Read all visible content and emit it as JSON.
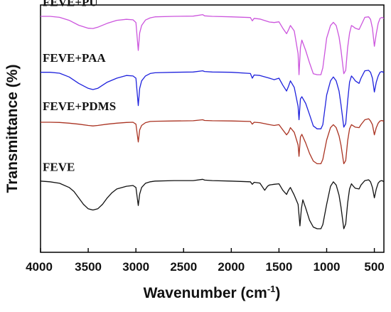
{
  "chart_data": {
    "type": "line",
    "xlabel_main": "Wavenumber (cm",
    "xlabel_sup": "-1",
    "xlabel_end": ")",
    "ylabel": "Transmittance (%)",
    "xlim": [
      4000,
      400
    ],
    "x_reversed": true,
    "ylim": [
      0,
      100
    ],
    "y_ticks_shown": false,
    "grid": false,
    "legend": "inline-labels",
    "xticks": [
      "4000",
      "3500",
      "3000",
      "2500",
      "2000",
      "1500",
      "1000",
      "500"
    ],
    "xtick_values": [
      4000,
      3500,
      3000,
      2500,
      2000,
      1500,
      1000,
      500
    ],
    "series": [
      {
        "name": "FEVE+PU",
        "color": "#cc55dd",
        "points": [
          [
            4000,
            95.4
          ],
          [
            3900,
            95.4
          ],
          [
            3800,
            95.0
          ],
          [
            3700,
            93.8
          ],
          [
            3600,
            91.8
          ],
          [
            3500,
            90.6
          ],
          [
            3450,
            90.5
          ],
          [
            3400,
            91.0
          ],
          [
            3300,
            92.6
          ],
          [
            3200,
            93.8
          ],
          [
            3100,
            94.2
          ],
          [
            3030,
            94.0
          ],
          [
            3000,
            92.9
          ],
          [
            2975,
            81.6
          ],
          [
            2960,
            88.7
          ],
          [
            2940,
            91.7
          ],
          [
            2900,
            93.9
          ],
          [
            2850,
            94.8
          ],
          [
            2800,
            95.2
          ],
          [
            2600,
            95.4
          ],
          [
            2400,
            95.5
          ],
          [
            2300,
            96.1
          ],
          [
            2280,
            95.6
          ],
          [
            2200,
            95.4
          ],
          [
            2000,
            95.2
          ],
          [
            1800,
            94.9
          ],
          [
            1780,
            93.6
          ],
          [
            1760,
            94.6
          ],
          [
            1700,
            94.3
          ],
          [
            1600,
            93.1
          ],
          [
            1550,
            92.9
          ],
          [
            1500,
            93.2
          ],
          [
            1460,
            90.6
          ],
          [
            1420,
            88.4
          ],
          [
            1400,
            89.9
          ],
          [
            1380,
            91.7
          ],
          [
            1340,
            89.5
          ],
          [
            1300,
            80.3
          ],
          [
            1290,
            71.8
          ],
          [
            1275,
            82.8
          ],
          [
            1260,
            85.8
          ],
          [
            1220,
            81.6
          ],
          [
            1180,
            76.6
          ],
          [
            1140,
            72.2
          ],
          [
            1100,
            71.8
          ],
          [
            1060,
            71.8
          ],
          [
            1040,
            74.6
          ],
          [
            1000,
            86.6
          ],
          [
            960,
            91.7
          ],
          [
            930,
            93.0
          ],
          [
            900,
            91.7
          ],
          [
            870,
            87.1
          ],
          [
            850,
            81.9
          ],
          [
            820,
            72.2
          ],
          [
            800,
            73.6
          ],
          [
            780,
            82.8
          ],
          [
            760,
            88.6
          ],
          [
            740,
            91.7
          ],
          [
            720,
            91.2
          ],
          [
            700,
            90.6
          ],
          [
            660,
            90.1
          ],
          [
            640,
            91.7
          ],
          [
            600,
            95.0
          ],
          [
            560,
            95.2
          ],
          [
            540,
            94.2
          ],
          [
            520,
            90.6
          ],
          [
            500,
            83.3
          ],
          [
            480,
            88.4
          ],
          [
            460,
            92.6
          ],
          [
            440,
            94.6
          ],
          [
            420,
            95.0
          ],
          [
            400,
            94.6
          ]
        ]
      },
      {
        "name": "FEVE+PAA",
        "color": "#1f22dd",
        "points": [
          [
            4000,
            72.8
          ],
          [
            3900,
            72.8
          ],
          [
            3800,
            72.4
          ],
          [
            3700,
            70.9
          ],
          [
            3600,
            68.3
          ],
          [
            3500,
            66.3
          ],
          [
            3450,
            65.8
          ],
          [
            3400,
            66.3
          ],
          [
            3300,
            68.8
          ],
          [
            3200,
            70.4
          ],
          [
            3100,
            71.5
          ],
          [
            3030,
            71.3
          ],
          [
            3000,
            70.4
          ],
          [
            2975,
            59.3
          ],
          [
            2960,
            66.3
          ],
          [
            2940,
            69.3
          ],
          [
            2900,
            71.3
          ],
          [
            2850,
            72.3
          ],
          [
            2800,
            72.6
          ],
          [
            2600,
            72.8
          ],
          [
            2400,
            72.9
          ],
          [
            2300,
            73.4
          ],
          [
            2280,
            73.1
          ],
          [
            2200,
            72.9
          ],
          [
            2000,
            72.8
          ],
          [
            1800,
            72.3
          ],
          [
            1780,
            70.4
          ],
          [
            1760,
            71.7
          ],
          [
            1700,
            71.5
          ],
          [
            1600,
            70.4
          ],
          [
            1550,
            69.8
          ],
          [
            1500,
            70.4
          ],
          [
            1460,
            67.6
          ],
          [
            1420,
            65.2
          ],
          [
            1400,
            67.1
          ],
          [
            1380,
            69.3
          ],
          [
            1340,
            66.7
          ],
          [
            1300,
            59.0
          ],
          [
            1290,
            53.6
          ],
          [
            1275,
            62.0
          ],
          [
            1260,
            62.9
          ],
          [
            1220,
            60.2
          ],
          [
            1180,
            55.7
          ],
          [
            1140,
            51.1
          ],
          [
            1100,
            49.9
          ],
          [
            1060,
            49.9
          ],
          [
            1040,
            51.6
          ],
          [
            1000,
            63.6
          ],
          [
            960,
            69.3
          ],
          [
            930,
            70.9
          ],
          [
            900,
            69.3
          ],
          [
            870,
            65.2
          ],
          [
            850,
            59.8
          ],
          [
            820,
            50.6
          ],
          [
            800,
            52.0
          ],
          [
            780,
            61.1
          ],
          [
            760,
            68.8
          ],
          [
            740,
            71.3
          ],
          [
            720,
            70.4
          ],
          [
            700,
            69.3
          ],
          [
            660,
            68.3
          ],
          [
            640,
            70.4
          ],
          [
            600,
            73.4
          ],
          [
            560,
            73.6
          ],
          [
            540,
            72.8
          ],
          [
            520,
            70.4
          ],
          [
            500,
            64.8
          ],
          [
            480,
            68.8
          ],
          [
            460,
            71.3
          ],
          [
            440,
            72.8
          ],
          [
            420,
            73.1
          ],
          [
            400,
            72.6
          ]
        ]
      },
      {
        "name": "FEVE+PDMS",
        "color": "#aa3322",
        "points": [
          [
            4000,
            52.6
          ],
          [
            3900,
            52.6
          ],
          [
            3800,
            52.5
          ],
          [
            3700,
            52.2
          ],
          [
            3600,
            51.8
          ],
          [
            3500,
            51.3
          ],
          [
            3450,
            51.1
          ],
          [
            3400,
            51.3
          ],
          [
            3300,
            51.8
          ],
          [
            3200,
            52.2
          ],
          [
            3100,
            52.5
          ],
          [
            3030,
            52.6
          ],
          [
            3000,
            51.8
          ],
          [
            2975,
            44.6
          ],
          [
            2960,
            49.5
          ],
          [
            2940,
            51.3
          ],
          [
            2900,
            52.4
          ],
          [
            2850,
            52.9
          ],
          [
            2800,
            53.0
          ],
          [
            2600,
            53.1
          ],
          [
            2400,
            53.2
          ],
          [
            2300,
            53.6
          ],
          [
            2280,
            53.3
          ],
          [
            2200,
            53.2
          ],
          [
            2000,
            53.1
          ],
          [
            1800,
            52.9
          ],
          [
            1780,
            51.8
          ],
          [
            1760,
            52.6
          ],
          [
            1700,
            52.4
          ],
          [
            1600,
            51.6
          ],
          [
            1550,
            51.3
          ],
          [
            1500,
            51.6
          ],
          [
            1460,
            49.5
          ],
          [
            1420,
            47.5
          ],
          [
            1400,
            48.5
          ],
          [
            1380,
            50.4
          ],
          [
            1340,
            48.5
          ],
          [
            1300,
            43.4
          ],
          [
            1290,
            38.8
          ],
          [
            1275,
            46.6
          ],
          [
            1260,
            47.7
          ],
          [
            1220,
            44.2
          ],
          [
            1180,
            40.0
          ],
          [
            1140,
            36.9
          ],
          [
            1100,
            35.8
          ],
          [
            1060,
            35.8
          ],
          [
            1040,
            37.6
          ],
          [
            1000,
            45.4
          ],
          [
            960,
            50.4
          ],
          [
            930,
            51.6
          ],
          [
            900,
            50.4
          ],
          [
            870,
            47.1
          ],
          [
            850,
            43.4
          ],
          [
            820,
            35.8
          ],
          [
            800,
            37.1
          ],
          [
            780,
            45.0
          ],
          [
            760,
            49.9
          ],
          [
            740,
            51.6
          ],
          [
            720,
            51.1
          ],
          [
            700,
            50.6
          ],
          [
            660,
            50.4
          ],
          [
            640,
            51.6
          ],
          [
            600,
            53.6
          ],
          [
            560,
            54.0
          ],
          [
            540,
            53.1
          ],
          [
            520,
            51.6
          ],
          [
            500,
            47.5
          ],
          [
            480,
            50.4
          ],
          [
            460,
            52.2
          ],
          [
            440,
            53.1
          ],
          [
            420,
            53.3
          ],
          [
            400,
            52.9
          ]
        ]
      },
      {
        "name": "FEVE",
        "color": "#111111",
        "points": [
          [
            4000,
            28.8
          ],
          [
            3900,
            28.5
          ],
          [
            3800,
            27.9
          ],
          [
            3700,
            26.2
          ],
          [
            3650,
            24.6
          ],
          [
            3600,
            22.0
          ],
          [
            3550,
            19.4
          ],
          [
            3500,
            17.6
          ],
          [
            3450,
            17.1
          ],
          [
            3400,
            17.6
          ],
          [
            3350,
            19.4
          ],
          [
            3300,
            22.0
          ],
          [
            3250,
            24.1
          ],
          [
            3200,
            25.6
          ],
          [
            3100,
            26.7
          ],
          [
            3030,
            27.0
          ],
          [
            3000,
            26.2
          ],
          [
            2975,
            18.9
          ],
          [
            2960,
            23.6
          ],
          [
            2940,
            26.2
          ],
          [
            2900,
            27.9
          ],
          [
            2850,
            28.5
          ],
          [
            2800,
            28.8
          ],
          [
            2600,
            29.0
          ],
          [
            2400,
            29.0
          ],
          [
            2300,
            29.5
          ],
          [
            2280,
            29.2
          ],
          [
            2200,
            29.0
          ],
          [
            2000,
            28.8
          ],
          [
            1800,
            28.5
          ],
          [
            1780,
            27.5
          ],
          [
            1760,
            28.3
          ],
          [
            1700,
            28.0
          ],
          [
            1650,
            25.1
          ],
          [
            1620,
            26.7
          ],
          [
            1600,
            27.2
          ],
          [
            1550,
            27.5
          ],
          [
            1500,
            27.7
          ],
          [
            1460,
            25.1
          ],
          [
            1420,
            23.4
          ],
          [
            1400,
            25.1
          ],
          [
            1380,
            26.2
          ],
          [
            1340,
            23.1
          ],
          [
            1300,
            19.4
          ],
          [
            1280,
            10.7
          ],
          [
            1265,
            17.6
          ],
          [
            1250,
            21.2
          ],
          [
            1220,
            17.9
          ],
          [
            1180,
            13.0
          ],
          [
            1140,
            10.2
          ],
          [
            1100,
            9.5
          ],
          [
            1060,
            9.5
          ],
          [
            1040,
            11.2
          ],
          [
            1000,
            19.4
          ],
          [
            960,
            26.7
          ],
          [
            930,
            28.5
          ],
          [
            900,
            27.2
          ],
          [
            870,
            23.1
          ],
          [
            850,
            18.4
          ],
          [
            820,
            9.5
          ],
          [
            800,
            11.5
          ],
          [
            780,
            19.9
          ],
          [
            760,
            25.6
          ],
          [
            740,
            27.7
          ],
          [
            720,
            26.7
          ],
          [
            700,
            25.9
          ],
          [
            660,
            25.6
          ],
          [
            640,
            27.2
          ],
          [
            600,
            29.0
          ],
          [
            560,
            29.3
          ],
          [
            540,
            28.5
          ],
          [
            520,
            26.2
          ],
          [
            500,
            22.0
          ],
          [
            480,
            25.6
          ],
          [
            460,
            28.0
          ],
          [
            440,
            28.8
          ],
          [
            420,
            29.0
          ],
          [
            400,
            28.5
          ]
        ]
      }
    ]
  }
}
